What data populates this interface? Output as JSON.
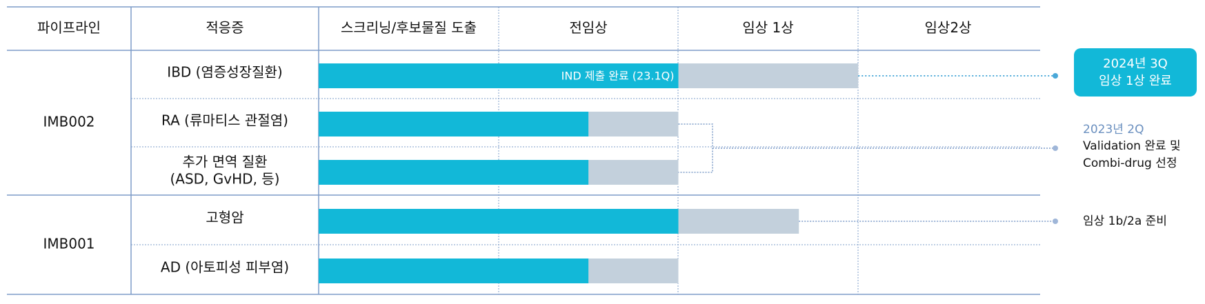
{
  "header": {
    "pipeline": "파이프라인",
    "indication": "적응증",
    "stages": [
      "스크리닝/후보물질 도출",
      "전임상",
      "임상 1상",
      "임상2상"
    ]
  },
  "colors": {
    "completed": "#12b8d8",
    "planned": "#c3d0dc",
    "badge": "#12b8d8",
    "grid": "#7d9cc8",
    "dotted": "#4aa8d8",
    "accent_text": "#6a8fbf"
  },
  "chart_data": {
    "type": "bar",
    "x_scale": "development stage (0 = start of 스크리닝, 4 = end of 임상2상)",
    "stages": [
      "스크리닝/후보물질 도출",
      "전임상",
      "임상 1상",
      "임상2상"
    ],
    "groups": [
      {
        "name": "IMB002",
        "rows": [
          {
            "indication": "IBD (염증성장질환)",
            "completed": 2.0,
            "planned": 3.0,
            "bar_label": "IND 제출 완료 (23.1Q)"
          },
          {
            "indication": "RA (류마티스 관절염)",
            "completed": 1.5,
            "planned": 2.0
          },
          {
            "indication_lines": [
              "추가 면역 질환",
              "(ASD, GvHD, 등)"
            ],
            "completed": 1.5,
            "planned": 2.0
          }
        ]
      },
      {
        "name": "IMB001",
        "rows": [
          {
            "indication": "고형암",
            "completed": 2.0,
            "planned": 2.67
          },
          {
            "indication": "AD (아토피성 피부염)",
            "completed": 1.5,
            "planned": 2.0
          }
        ]
      }
    ],
    "annotations": [
      {
        "type": "badge",
        "lines": [
          "2024년 3Q",
          "임상 1상 완료"
        ]
      },
      {
        "type": "text",
        "highlight": "2023년 2Q",
        "lines": [
          "Validation 완료 및",
          "Combi-drug 선정"
        ]
      },
      {
        "type": "text",
        "lines": [
          "임상 1b/2a 준비"
        ]
      }
    ]
  }
}
